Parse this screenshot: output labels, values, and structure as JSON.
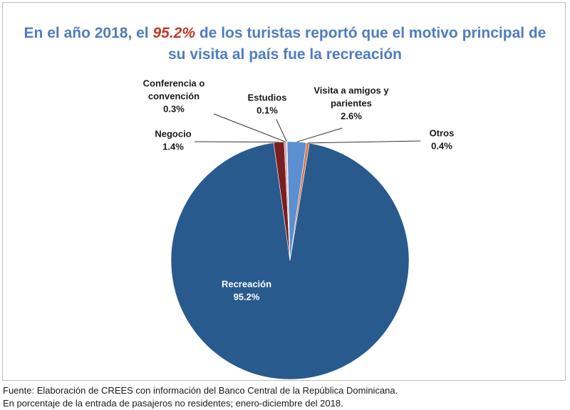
{
  "title": {
    "before": "En el año 2018, el ",
    "highlight": "95.2%",
    "after": " de los turistas reportó que el motivo principal de",
    "line2": "su visita al país fue la recreación"
  },
  "chart_data": {
    "type": "pie",
    "title": "En el año 2018, el 95.2% de los turistas reportó que el motivo principal de su visita al país fue la recreación",
    "unit": "%",
    "start_angle_deg": -1.4,
    "direction": "clockwise",
    "slices": [
      {
        "name": "Visita a amigos y parientes",
        "label_lines": [
          "Visita a amigos y",
          "parientes"
        ],
        "value": 2.6,
        "value_label": "2.6%",
        "color": "#5b8fd0"
      },
      {
        "name": "Otros",
        "label_lines": [
          "Otros"
        ],
        "value": 0.4,
        "value_label": "0.4%",
        "color": "#d8764f"
      },
      {
        "name": "Recreación",
        "label_lines": [
          "Recreación"
        ],
        "value": 95.2,
        "value_label": "95.2%",
        "color": "#285a8e"
      },
      {
        "name": "Negocio",
        "label_lines": [
          "Negocio"
        ],
        "value": 1.4,
        "value_label": "1.4%",
        "color": "#7a1f1f"
      },
      {
        "name": "Conferencia o convención",
        "label_lines": [
          "Conferencia o",
          "convención"
        ],
        "value": 0.3,
        "value_label": "0.3%",
        "color": "#d29fa3"
      },
      {
        "name": "Estudios",
        "label_lines": [
          "Estudios"
        ],
        "value": 0.1,
        "value_label": "0.1%",
        "color": "#b9c3dd"
      }
    ]
  },
  "footer": {
    "line1": "Fuente: Elaboración de CREES con información del Banco Central de la República Dominicana.",
    "line2": "En porcentaje de la entrada de pasajeros no residentes; enero-diciembre del 2018."
  }
}
